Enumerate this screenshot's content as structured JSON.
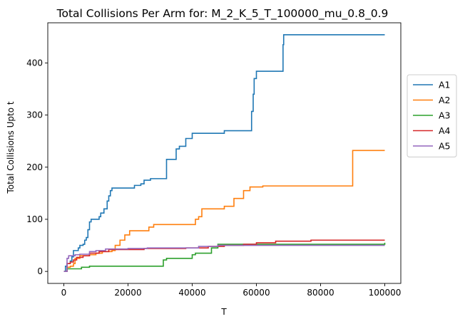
{
  "chart_data": {
    "type": "line",
    "title": "Total Collisions Per Arm for: M_2_K_5_T_100000_mu_0.8_0.9",
    "xlabel": "T",
    "ylabel": "Total Collisions Upto t",
    "xlim": [
      -5000,
      105000
    ],
    "ylim": [
      -23,
      477
    ],
    "xticks": [
      0,
      20000,
      40000,
      60000,
      80000,
      100000
    ],
    "xtick_labels": [
      "0",
      "20000",
      "40000",
      "60000",
      "80000",
      "100000"
    ],
    "yticks": [
      0,
      100,
      200,
      300,
      400
    ],
    "ytick_labels": [
      "0",
      "100",
      "200",
      "300",
      "400"
    ],
    "grid": false,
    "legend_position": "outside-right",
    "series": [
      {
        "name": "A1",
        "color": "#1f77b4",
        "points": [
          [
            0,
            0
          ],
          [
            500,
            10
          ],
          [
            1000,
            15
          ],
          [
            2000,
            20
          ],
          [
            2500,
            28
          ],
          [
            3000,
            40
          ],
          [
            4000,
            40
          ],
          [
            4500,
            45
          ],
          [
            5000,
            50
          ],
          [
            6000,
            52
          ],
          [
            6500,
            60
          ],
          [
            7000,
            65
          ],
          [
            7500,
            80
          ],
          [
            8000,
            95
          ],
          [
            8500,
            100
          ],
          [
            10000,
            100
          ],
          [
            11000,
            105
          ],
          [
            11500,
            112
          ],
          [
            12500,
            120
          ],
          [
            13500,
            135
          ],
          [
            14000,
            145
          ],
          [
            14500,
            155
          ],
          [
            15000,
            160
          ],
          [
            21500,
            160
          ],
          [
            22000,
            165
          ],
          [
            24000,
            168
          ],
          [
            25000,
            175
          ],
          [
            27000,
            178
          ],
          [
            31500,
            178
          ],
          [
            32000,
            215
          ],
          [
            34000,
            215
          ],
          [
            35000,
            235
          ],
          [
            36000,
            240
          ],
          [
            38000,
            255
          ],
          [
            40000,
            265
          ],
          [
            49000,
            265
          ],
          [
            50000,
            270
          ],
          [
            58500,
            307
          ],
          [
            59000,
            340
          ],
          [
            59300,
            370
          ],
          [
            60000,
            384
          ],
          [
            68000,
            384
          ],
          [
            68300,
            435
          ],
          [
            68500,
            454
          ],
          [
            100000,
            454
          ]
        ]
      },
      {
        "name": "A2",
        "color": "#ff7f0e",
        "points": [
          [
            0,
            0
          ],
          [
            1000,
            8
          ],
          [
            2000,
            10
          ],
          [
            3000,
            15
          ],
          [
            3500,
            25
          ],
          [
            5000,
            30
          ],
          [
            8000,
            32
          ],
          [
            10000,
            35
          ],
          [
            12000,
            38
          ],
          [
            15000,
            40
          ],
          [
            16000,
            50
          ],
          [
            17500,
            60
          ],
          [
            19000,
            70
          ],
          [
            20500,
            78
          ],
          [
            25000,
            78
          ],
          [
            26500,
            85
          ],
          [
            28000,
            90
          ],
          [
            40000,
            90
          ],
          [
            41000,
            100
          ],
          [
            42000,
            105
          ],
          [
            43000,
            120
          ],
          [
            48000,
            120
          ],
          [
            50000,
            125
          ],
          [
            53000,
            140
          ],
          [
            56000,
            155
          ],
          [
            58000,
            162
          ],
          [
            60500,
            162
          ],
          [
            62000,
            164
          ],
          [
            68000,
            164
          ],
          [
            90000,
            232
          ],
          [
            100000,
            232
          ]
        ]
      },
      {
        "name": "A3",
        "color": "#2ca02c",
        "points": [
          [
            0,
            0
          ],
          [
            1000,
            5
          ],
          [
            5000,
            5
          ],
          [
            5500,
            8
          ],
          [
            8000,
            10
          ],
          [
            28000,
            10
          ],
          [
            31000,
            22
          ],
          [
            32000,
            25
          ],
          [
            39500,
            25
          ],
          [
            40000,
            32
          ],
          [
            41000,
            35
          ],
          [
            46000,
            45
          ],
          [
            48000,
            52
          ],
          [
            100000,
            55
          ]
        ]
      },
      {
        "name": "A4",
        "color": "#d62728",
        "points": [
          [
            0,
            0
          ],
          [
            1000,
            15
          ],
          [
            2000,
            18
          ],
          [
            3000,
            22
          ],
          [
            4000,
            27
          ],
          [
            6000,
            30
          ],
          [
            8000,
            35
          ],
          [
            11000,
            38
          ],
          [
            14000,
            42
          ],
          [
            25000,
            44
          ],
          [
            38000,
            45
          ],
          [
            45000,
            48
          ],
          [
            50000,
            50
          ],
          [
            56000,
            52
          ],
          [
            60000,
            55
          ],
          [
            66000,
            58
          ],
          [
            77000,
            60
          ],
          [
            100000,
            60
          ]
        ]
      },
      {
        "name": "A5",
        "color": "#9467bd",
        "points": [
          [
            0,
            0
          ],
          [
            1000,
            25
          ],
          [
            1500,
            30
          ],
          [
            3500,
            32
          ],
          [
            5000,
            33
          ],
          [
            8000,
            38
          ],
          [
            10000,
            40
          ],
          [
            13000,
            43
          ],
          [
            20000,
            44
          ],
          [
            26000,
            45
          ],
          [
            37000,
            45
          ],
          [
            42000,
            48
          ],
          [
            48000,
            50
          ],
          [
            100000,
            50
          ]
        ]
      }
    ]
  }
}
